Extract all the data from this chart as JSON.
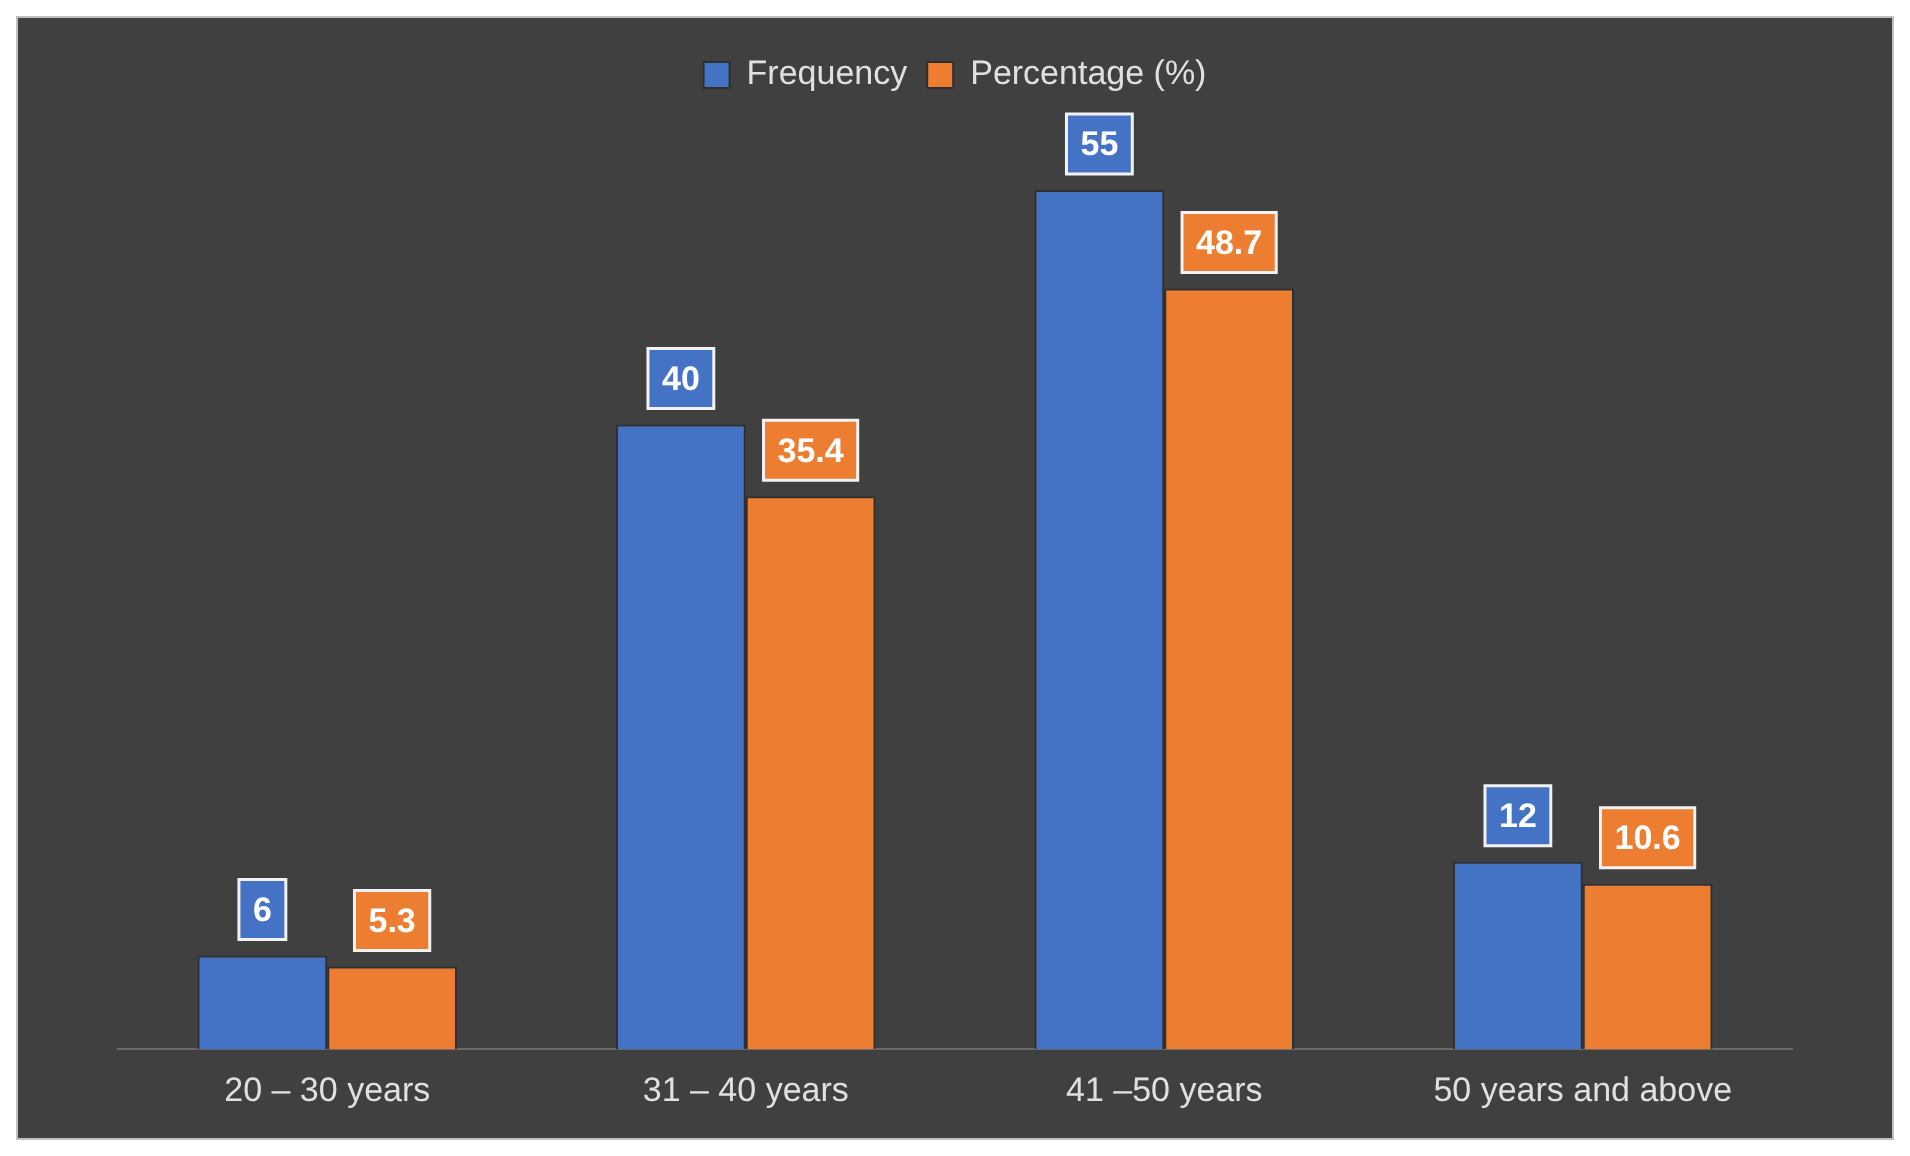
{
  "chart_data": {
    "type": "bar",
    "categories": [
      "20 – 30 years",
      "31 – 40 years",
      "41 –50 years",
      "50 years and above"
    ],
    "series": [
      {
        "name": "Frequency",
        "color": "#4472c4",
        "values": [
          6,
          40,
          55,
          12
        ]
      },
      {
        "name": "Percentage (%)",
        "color": "#ed7d31",
        "values": [
          5.3,
          35.4,
          48.7,
          10.6
        ]
      }
    ],
    "data_labels": true,
    "legend": "top",
    "grid": false
  }
}
